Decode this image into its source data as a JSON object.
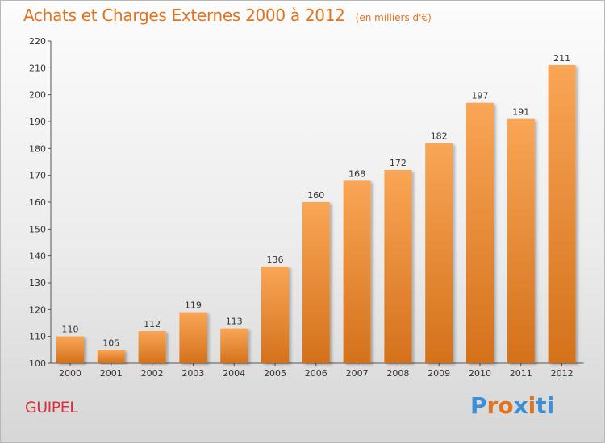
{
  "header": {
    "title": "Achats et Charges Externes 2000 à 2012",
    "unit": "(en milliers d'€)"
  },
  "footer": {
    "commune": "GUIPEL",
    "logo_text": "Proxiti"
  },
  "colors": {
    "title": "#e2731e",
    "commune": "#d8303c",
    "bar_light": "#f9a656",
    "bar_dark": "#d4711b",
    "logo_letters": [
      "#3b8fd6",
      "#e2731e",
      "#e2731e",
      "#3b8fd6",
      "#e2731e",
      "#3b8fd6",
      "#3b8fd6"
    ]
  },
  "chart_data": {
    "type": "bar",
    "title": "Achats et Charges Externes 2000 à 2012",
    "subtitle": "(en milliers d'€)",
    "xlabel": "",
    "ylabel": "",
    "categories": [
      "2000",
      "2001",
      "2002",
      "2003",
      "2004",
      "2005",
      "2006",
      "2007",
      "2008",
      "2009",
      "2010",
      "2011",
      "2012"
    ],
    "values": [
      110,
      105,
      112,
      119,
      113,
      136,
      160,
      168,
      172,
      182,
      197,
      191,
      211
    ],
    "ylim": [
      100,
      220
    ],
    "yticks": [
      100,
      110,
      120,
      130,
      140,
      150,
      160,
      170,
      180,
      190,
      200,
      210,
      220
    ],
    "grid": false,
    "data_labels": true
  }
}
